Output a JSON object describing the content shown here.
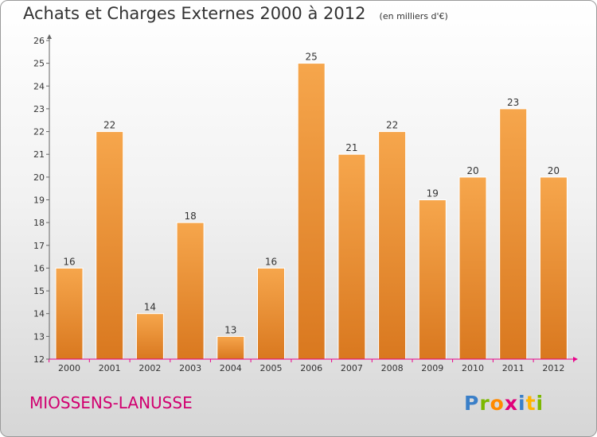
{
  "title": "Achats et Charges Externes 2000 à 2012",
  "unit": "(en milliers d'€)",
  "place": "MIOSSENS-LANUSSE",
  "logo": {
    "text": "Proxiti",
    "letter_colors": [
      "#3a7fc8",
      "#7cb800",
      "#ff8a00",
      "#e0007a",
      "#3a7fc8",
      "#ffb400",
      "#7cb800"
    ]
  },
  "colors": {
    "bar_light": "#f6a64c",
    "bar_dark": "#d9781f",
    "place": "#d10070",
    "axis": "#e9008a"
  },
  "chart_data": {
    "type": "bar",
    "title": "Achats et Charges Externes 2000 à 2012",
    "categories": [
      "2000",
      "2001",
      "2002",
      "2003",
      "2004",
      "2005",
      "2006",
      "2007",
      "2008",
      "2009",
      "2010",
      "2011",
      "2012"
    ],
    "values": [
      16,
      22,
      14,
      18,
      13,
      16,
      25,
      21,
      22,
      19,
      20,
      23,
      20
    ],
    "ylim": [
      12,
      26
    ],
    "yticks": [
      12,
      13,
      14,
      15,
      16,
      17,
      18,
      19,
      20,
      21,
      22,
      23,
      24,
      25,
      26
    ],
    "grid": false,
    "legend": "none"
  }
}
